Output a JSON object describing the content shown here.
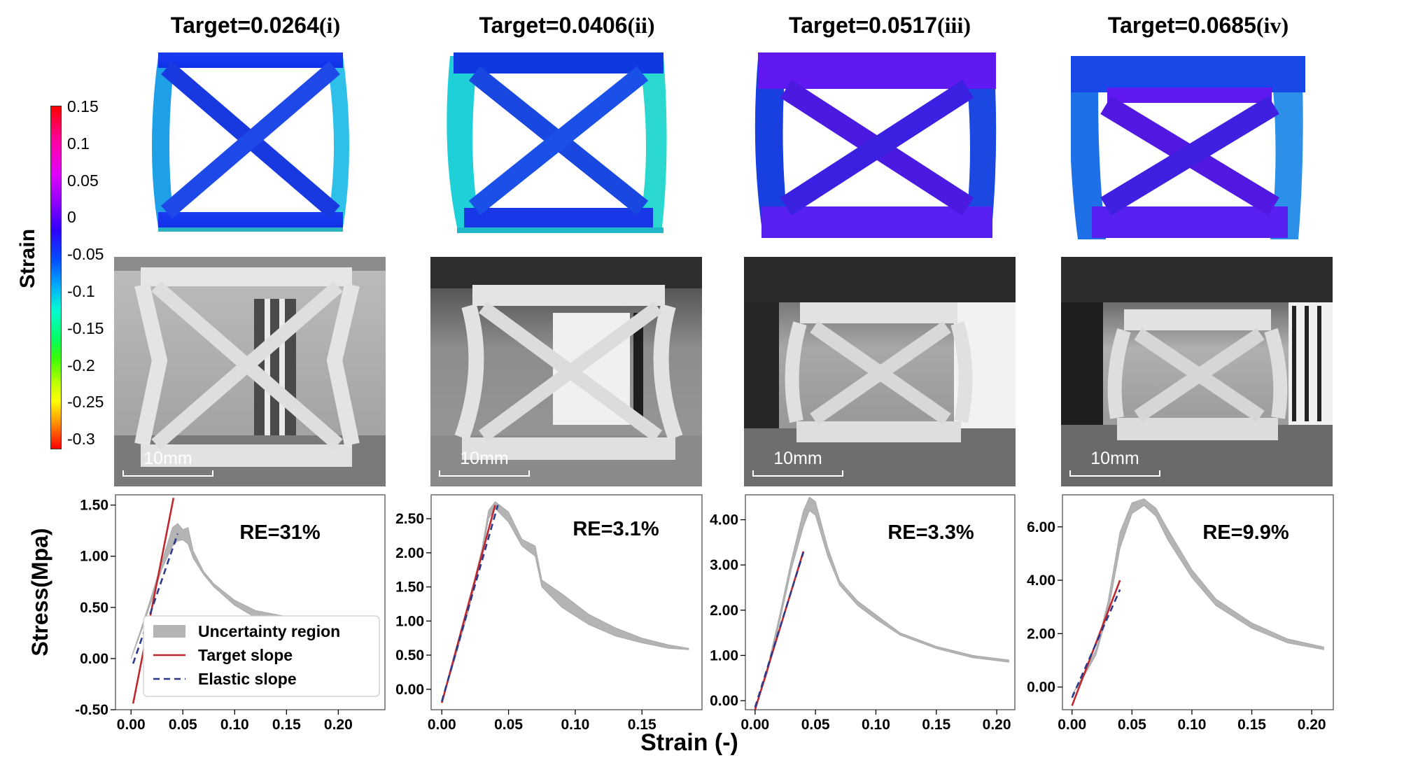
{
  "colorbar": {
    "label": "Strain",
    "ticks": [
      "0.15",
      "0.1",
      "0.05",
      "0",
      "-0.05",
      "-0.1",
      "-0.15",
      "-0.2",
      "-0.25",
      "-0.3"
    ]
  },
  "columns": [
    {
      "title_prefix": "Target=0.0264",
      "title_roman": "(i)",
      "scale_label": "10mm"
    },
    {
      "title_prefix": "Target=0.0406",
      "title_roman": "(ii)",
      "scale_label": "10mm"
    },
    {
      "title_prefix": "Target=0.0517",
      "title_roman": "(iii)",
      "scale_label": "10mm"
    },
    {
      "title_prefix": "Target=0.0685",
      "title_roman": "(iv)",
      "scale_label": "10mm"
    }
  ],
  "shared_labels": {
    "ylabel": "Stress(Mpa)",
    "xlabel": "Strain (-)"
  },
  "chart_data": [
    {
      "type": "line",
      "annotation": "RE=31%",
      "xlim": [
        -0.015,
        0.245
      ],
      "ylim": [
        -0.5,
        1.6
      ],
      "xticks": [
        0,
        0.05,
        0.1,
        0.15,
        0.2
      ],
      "xtick_labels": [
        "0.00",
        "0.05",
        "0.10",
        "0.15",
        "0.20"
      ],
      "yticks": [
        -0.5,
        0,
        0.5,
        1,
        1.5
      ],
      "ytick_labels": [
        "-0.50",
        "0.00",
        "0.50",
        "1.00",
        "1.50"
      ],
      "legend": {
        "position": "lower-right",
        "entries": [
          "Uncertainty region",
          "Target slope",
          "Elastic slope"
        ]
      },
      "uncertainty": {
        "x": [
          0,
          0.01,
          0.02,
          0.03,
          0.04,
          0.045,
          0.05,
          0.055,
          0.06,
          0.07,
          0.08,
          0.1,
          0.12,
          0.15,
          0.18,
          0.2
        ],
        "upper": [
          0,
          0.3,
          0.62,
          0.95,
          1.28,
          1.32,
          1.26,
          1.28,
          1.05,
          0.85,
          0.73,
          0.57,
          0.47,
          0.41,
          0.38,
          0.36
        ],
        "lower": [
          0,
          0.27,
          0.57,
          0.88,
          1.1,
          1.15,
          1.16,
          1.12,
          0.98,
          0.82,
          0.7,
          0.52,
          0.4,
          0.33,
          0.3,
          0.29
        ]
      },
      "series": [
        {
          "name": "Target slope",
          "color": "#c0272d",
          "dash": false,
          "x": [
            0.002,
            0.041
          ],
          "y": [
            -0.44,
            1.57
          ]
        },
        {
          "name": "Elastic slope",
          "color": "#2d3a8c",
          "dash": true,
          "x": [
            0.002,
            0.045
          ],
          "y": [
            -0.05,
            1.22
          ]
        }
      ]
    },
    {
      "type": "line",
      "annotation": "RE=3.1%",
      "xlim": [
        -0.008,
        0.195
      ],
      "ylim": [
        -0.3,
        2.85
      ],
      "xticks": [
        0,
        0.05,
        0.1,
        0.15
      ],
      "xtick_labels": [
        "0.00",
        "0.05",
        "0.10",
        "0.15"
      ],
      "yticks": [
        0,
        0.5,
        1,
        1.5,
        2,
        2.5
      ],
      "ytick_labels": [
        "0.00",
        "0.50",
        "1.00",
        "1.50",
        "2.00",
        "2.50"
      ],
      "uncertainty": {
        "x": [
          0,
          0.01,
          0.02,
          0.03,
          0.035,
          0.04,
          0.05,
          0.06,
          0.07,
          0.075,
          0.09,
          0.11,
          0.13,
          0.15,
          0.17,
          0.185
        ],
        "upper": [
          -0.2,
          0.5,
          1.25,
          2.05,
          2.62,
          2.75,
          2.6,
          2.2,
          2.1,
          1.6,
          1.4,
          1.1,
          0.9,
          0.75,
          0.65,
          0.6
        ],
        "lower": [
          -0.2,
          0.45,
          1.15,
          1.95,
          2.5,
          2.65,
          2.45,
          2.1,
          1.95,
          1.5,
          1.2,
          0.95,
          0.78,
          0.68,
          0.6,
          0.58
        ]
      },
      "series": [
        {
          "name": "Target slope",
          "color": "#c0272d",
          "dash": false,
          "x": [
            0,
            0.04
          ],
          "y": [
            -0.2,
            2.7
          ]
        },
        {
          "name": "Elastic slope",
          "color": "#2d3a8c",
          "dash": true,
          "x": [
            0,
            0.042
          ],
          "y": [
            -0.18,
            2.7
          ]
        }
      ]
    },
    {
      "type": "line",
      "annotation": "RE=3.3%",
      "xlim": [
        -0.008,
        0.215
      ],
      "ylim": [
        -0.2,
        4.55
      ],
      "xticks": [
        0,
        0.05,
        0.1,
        0.15,
        0.2
      ],
      "xtick_labels": [
        "0.00",
        "0.05",
        "0.10",
        "0.15",
        "0.20"
      ],
      "yticks": [
        0,
        1,
        2,
        3,
        4
      ],
      "ytick_labels": [
        "0.00",
        "1.00",
        "2.00",
        "3.00",
        "4.00"
      ],
      "uncertainty": {
        "x": [
          0,
          0.01,
          0.02,
          0.03,
          0.04,
          0.045,
          0.05,
          0.06,
          0.07,
          0.085,
          0.1,
          0.12,
          0.15,
          0.18,
          0.21
        ],
        "upper": [
          -0.2,
          0.7,
          1.85,
          3.1,
          4.2,
          4.5,
          4.4,
          3.4,
          2.65,
          2.2,
          1.9,
          1.5,
          1.2,
          1.0,
          0.9
        ],
        "lower": [
          -0.2,
          0.6,
          1.7,
          2.9,
          3.85,
          4.2,
          4.1,
          3.2,
          2.55,
          2.1,
          1.8,
          1.45,
          1.15,
          0.95,
          0.85
        ]
      },
      "series": [
        {
          "name": "Target slope",
          "color": "#c0272d",
          "dash": false,
          "x": [
            0,
            0.04
          ],
          "y": [
            -0.2,
            3.3
          ]
        },
        {
          "name": "Elastic slope",
          "color": "#2d3a8c",
          "dash": true,
          "x": [
            0,
            0.04
          ],
          "y": [
            -0.15,
            3.28
          ]
        }
      ]
    },
    {
      "type": "line",
      "annotation": "RE=9.9%",
      "xlim": [
        -0.008,
        0.218
      ],
      "ylim": [
        -0.85,
        7.2
      ],
      "xticks": [
        0,
        0.05,
        0.1,
        0.15,
        0.2
      ],
      "xtick_labels": [
        "0.00",
        "0.05",
        "0.10",
        "0.15",
        "0.20"
      ],
      "yticks": [
        0,
        2,
        4,
        6
      ],
      "ytick_labels": [
        "0.00",
        "2.00",
        "4.00",
        "6.00"
      ],
      "uncertainty": {
        "x": [
          0,
          0.01,
          0.02,
          0.03,
          0.04,
          0.05,
          0.06,
          0.07,
          0.08,
          0.1,
          0.12,
          0.15,
          0.18,
          0.21
        ],
        "upper": [
          -0.3,
          0.5,
          1.4,
          3.2,
          5.8,
          6.9,
          7.05,
          6.7,
          5.9,
          4.4,
          3.3,
          2.4,
          1.8,
          1.5
        ],
        "lower": [
          -0.3,
          0.4,
          1.2,
          2.8,
          5.2,
          6.5,
          6.8,
          6.4,
          5.5,
          4.1,
          3.05,
          2.2,
          1.65,
          1.4
        ]
      },
      "series": [
        {
          "name": "Target slope",
          "color": "#c0272d",
          "dash": false,
          "x": [
            0,
            0.04
          ],
          "y": [
            -0.7,
            4.0
          ]
        },
        {
          "name": "Elastic slope",
          "color": "#2d3a8c",
          "dash": true,
          "x": [
            0,
            0.04
          ],
          "y": [
            -0.4,
            3.65
          ]
        }
      ]
    }
  ]
}
